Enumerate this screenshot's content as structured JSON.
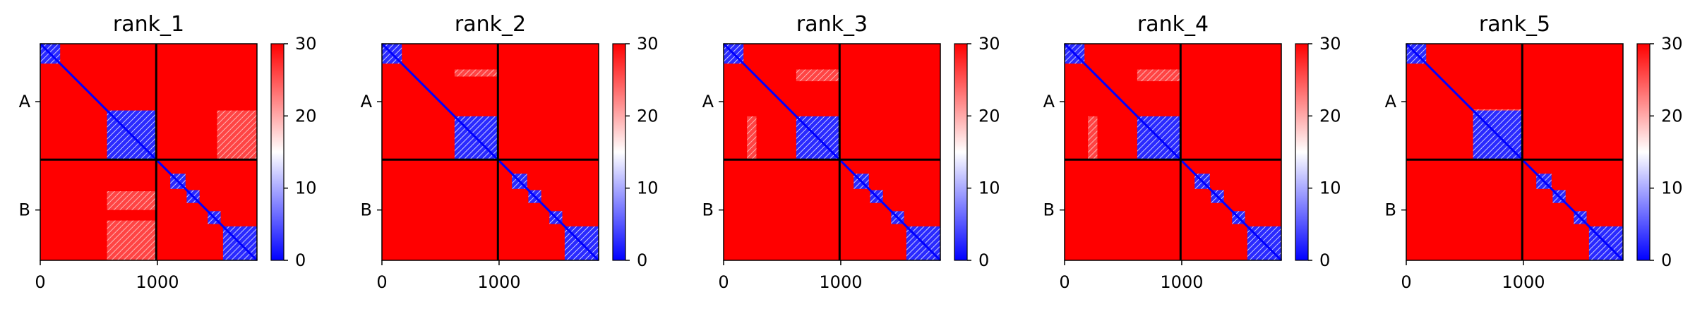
{
  "chart_data": [
    {
      "type": "heatmap",
      "title": "rank_1",
      "x_ticks": [
        {
          "value": 0,
          "label": "0"
        },
        {
          "value": 1000,
          "label": "1000"
        }
      ],
      "xlim": [
        0,
        1850
      ],
      "y_tick_labels": [
        "A",
        "B"
      ],
      "chain_boundary": 990,
      "colorbar": {
        "min": 0,
        "max": 30,
        "ticks": [
          "0",
          "10",
          "20",
          "30"
        ],
        "colormap": [
          "#0000ff",
          "#ffffff",
          "#ff0000"
        ]
      },
      "low_blocks": [
        {
          "x": [
            0,
            170
          ],
          "y": [
            0,
            170
          ]
        },
        {
          "x": [
            570,
            990
          ],
          "y": [
            570,
            990
          ]
        },
        {
          "x": [
            1110,
            1240
          ],
          "y": [
            1110,
            1240
          ]
        },
        {
          "x": [
            1250,
            1360
          ],
          "y": [
            1250,
            1360
          ]
        },
        {
          "x": [
            1430,
            1540
          ],
          "y": [
            1430,
            1540
          ]
        },
        {
          "x": [
            1560,
            1850
          ],
          "y": [
            1560,
            1850
          ]
        }
      ],
      "mid_blocks": [
        {
          "x": [
            1510,
            1850
          ],
          "y": [
            570,
            990
          ]
        },
        {
          "x": [
            570,
            990
          ],
          "y": [
            1510,
            1850
          ]
        },
        {
          "x": [
            570,
            990
          ],
          "y": [
            1260,
            1420
          ]
        }
      ]
    },
    {
      "type": "heatmap",
      "title": "rank_2",
      "x_ticks": [
        {
          "value": 0,
          "label": "0"
        },
        {
          "value": 1000,
          "label": "1000"
        }
      ],
      "xlim": [
        0,
        1850
      ],
      "y_tick_labels": [
        "A",
        "B"
      ],
      "chain_boundary": 990,
      "colorbar": {
        "min": 0,
        "max": 30,
        "ticks": [
          "0",
          "10",
          "20",
          "30"
        ],
        "colormap": [
          "#0000ff",
          "#ffffff",
          "#ff0000"
        ]
      },
      "low_blocks": [
        {
          "x": [
            0,
            170
          ],
          "y": [
            0,
            170
          ]
        },
        {
          "x": [
            620,
            990
          ],
          "y": [
            620,
            990
          ]
        },
        {
          "x": [
            1110,
            1240
          ],
          "y": [
            1110,
            1240
          ]
        },
        {
          "x": [
            1250,
            1360
          ],
          "y": [
            1250,
            1360
          ]
        },
        {
          "x": [
            1430,
            1540
          ],
          "y": [
            1430,
            1540
          ]
        },
        {
          "x": [
            1560,
            1850
          ],
          "y": [
            1560,
            1850
          ]
        }
      ],
      "mid_blocks": [
        {
          "x": [
            620,
            990
          ],
          "y": [
            220,
            280
          ]
        }
      ]
    },
    {
      "type": "heatmap",
      "title": "rank_3",
      "x_ticks": [
        {
          "value": 0,
          "label": "0"
        },
        {
          "value": 1000,
          "label": "1000"
        }
      ],
      "xlim": [
        0,
        1850
      ],
      "y_tick_labels": [
        "A",
        "B"
      ],
      "chain_boundary": 990,
      "colorbar": {
        "min": 0,
        "max": 30,
        "ticks": [
          "0",
          "10",
          "20",
          "30"
        ],
        "colormap": [
          "#0000ff",
          "#ffffff",
          "#ff0000"
        ]
      },
      "low_blocks": [
        {
          "x": [
            0,
            170
          ],
          "y": [
            0,
            170
          ]
        },
        {
          "x": [
            620,
            990
          ],
          "y": [
            620,
            990
          ]
        },
        {
          "x": [
            1110,
            1240
          ],
          "y": [
            1110,
            1240
          ]
        },
        {
          "x": [
            1250,
            1360
          ],
          "y": [
            1250,
            1360
          ]
        },
        {
          "x": [
            1430,
            1540
          ],
          "y": [
            1430,
            1540
          ]
        },
        {
          "x": [
            1560,
            1850
          ],
          "y": [
            1560,
            1850
          ]
        }
      ],
      "mid_blocks": [
        {
          "x": [
            620,
            990
          ],
          "y": [
            220,
            320
          ]
        },
        {
          "x": [
            200,
            280
          ],
          "y": [
            620,
            990
          ]
        }
      ]
    },
    {
      "type": "heatmap",
      "title": "rank_4",
      "x_ticks": [
        {
          "value": 0,
          "label": "0"
        },
        {
          "value": 1000,
          "label": "1000"
        }
      ],
      "xlim": [
        0,
        1850
      ],
      "y_tick_labels": [
        "A",
        "B"
      ],
      "chain_boundary": 990,
      "colorbar": {
        "min": 0,
        "max": 30,
        "ticks": [
          "0",
          "10",
          "20",
          "30"
        ],
        "colormap": [
          "#0000ff",
          "#ffffff",
          "#ff0000"
        ]
      },
      "low_blocks": [
        {
          "x": [
            0,
            170
          ],
          "y": [
            0,
            170
          ]
        },
        {
          "x": [
            620,
            990
          ],
          "y": [
            620,
            990
          ]
        },
        {
          "x": [
            1110,
            1240
          ],
          "y": [
            1110,
            1240
          ]
        },
        {
          "x": [
            1250,
            1360
          ],
          "y": [
            1250,
            1360
          ]
        },
        {
          "x": [
            1430,
            1540
          ],
          "y": [
            1430,
            1540
          ]
        },
        {
          "x": [
            1560,
            1850
          ],
          "y": [
            1560,
            1850
          ]
        }
      ],
      "mid_blocks": [
        {
          "x": [
            620,
            990
          ],
          "y": [
            220,
            320
          ]
        },
        {
          "x": [
            200,
            280
          ],
          "y": [
            620,
            990
          ]
        }
      ]
    },
    {
      "type": "heatmap",
      "title": "rank_5",
      "x_ticks": [
        {
          "value": 0,
          "label": "0"
        },
        {
          "value": 1000,
          "label": "1000"
        }
      ],
      "xlim": [
        0,
        1850
      ],
      "y_tick_labels": [
        "A",
        "B"
      ],
      "chain_boundary": 990,
      "colorbar": {
        "min": 0,
        "max": 30,
        "ticks": [
          "0",
          "10",
          "20",
          "30"
        ],
        "colormap": [
          "#0000ff",
          "#ffffff",
          "#ff0000"
        ]
      },
      "low_blocks": [
        {
          "x": [
            0,
            170
          ],
          "y": [
            0,
            170
          ]
        },
        {
          "x": [
            570,
            990
          ],
          "y": [
            570,
            990
          ]
        },
        {
          "x": [
            1110,
            1240
          ],
          "y": [
            1110,
            1240
          ]
        },
        {
          "x": [
            1250,
            1360
          ],
          "y": [
            1250,
            1360
          ]
        },
        {
          "x": [
            1430,
            1540
          ],
          "y": [
            1430,
            1540
          ]
        },
        {
          "x": [
            1560,
            1850
          ],
          "y": [
            1560,
            1850
          ]
        }
      ],
      "mid_blocks": [
        {
          "x": [
            570,
            990
          ],
          "y": [
            560,
            640
          ]
        }
      ]
    }
  ]
}
